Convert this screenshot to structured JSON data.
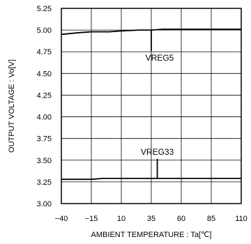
{
  "chart_data": {
    "type": "line",
    "xlabel": "AMBIENT TEMPERATURE : Ta[℃]",
    "ylabel": "OUTPUT VOLTAGE : Vo[V]",
    "xlim": [
      -40,
      110
    ],
    "ylim": [
      3.0,
      5.25
    ],
    "x_ticks": [
      "−40",
      "−15",
      "10",
      "35",
      "60",
      "85",
      "110"
    ],
    "y_ticks": [
      "3.00",
      "3.25",
      "3.50",
      "3.75",
      "4.00",
      "4.25",
      "4.50",
      "4.75",
      "5.00",
      "5.25"
    ],
    "grid": true,
    "series": [
      {
        "name": "VREG5",
        "x": [
          -40,
          -25,
          -15,
          0,
          10,
          25,
          35,
          45,
          60,
          85,
          110
        ],
        "y": [
          4.95,
          4.97,
          4.98,
          4.98,
          4.99,
          5.0,
          5.0,
          5.01,
          5.01,
          5.01,
          5.01
        ]
      },
      {
        "name": "VREG33",
        "x": [
          -40,
          -25,
          -15,
          -5,
          10,
          35,
          60,
          85,
          110
        ],
        "y": [
          3.28,
          3.28,
          3.28,
          3.29,
          3.29,
          3.29,
          3.29,
          3.29,
          3.29
        ]
      }
    ],
    "annotations": [
      {
        "text": "VREG5",
        "x": 35,
        "y": 5.0
      },
      {
        "text": "VREG33",
        "x": 40,
        "y": 3.29
      }
    ]
  }
}
